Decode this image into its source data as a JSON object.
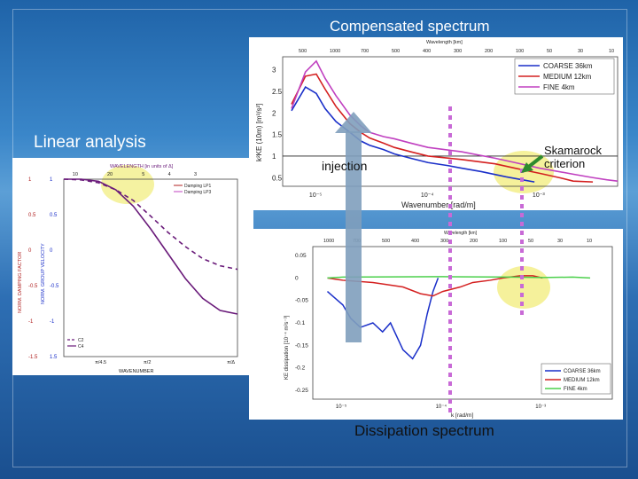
{
  "slide": {
    "title_top": "Compensated spectrum",
    "title_left": "Linear analysis",
    "injection": "injection",
    "skamarock": "Skamarock criterion",
    "title_bottom": "Dissipation spectrum"
  },
  "chart_data": [
    {
      "type": "line",
      "title": "",
      "xlabel": "WAVENUMBER",
      "top_xlabel": "WAVELENGTH [in units of Δ]",
      "ylabel_left": "NORM. DAMPING FACTOR",
      "ylabel_right": "NORM. GROUP VELOCITY",
      "top_ticks": [
        "10",
        "20",
        "5",
        "4",
        "3"
      ],
      "bottom_ticks": [
        "π/4.5",
        "π/2",
        "π/Δ"
      ],
      "left_ticks": [
        "1",
        "0.5",
        "0",
        "-0.5",
        "-1",
        "-1.5"
      ],
      "right_ticks": [
        "1",
        "0.5",
        "0",
        "-0.5",
        "-1",
        "1.5"
      ],
      "legend_top": [
        "Damping LP1",
        "Damping LP3"
      ],
      "legend_bottom": [
        "C2",
        "C4"
      ],
      "series": [
        {
          "name": "C2",
          "x": [
            0,
            0.1,
            0.2,
            0.3,
            0.4,
            0.5,
            0.6,
            0.7,
            0.8,
            0.9,
            1.0
          ],
          "values": [
            1.0,
            0.99,
            0.95,
            0.85,
            0.7,
            0.48,
            0.25,
            0.05,
            -0.12,
            -0.22,
            -0.27
          ]
        },
        {
          "name": "C4",
          "x": [
            0,
            0.1,
            0.2,
            0.3,
            0.4,
            0.5,
            0.6,
            0.7,
            0.8,
            0.9,
            1.0
          ],
          "values": [
            1.0,
            1.0,
            0.97,
            0.85,
            0.62,
            0.3,
            -0.05,
            -0.4,
            -0.68,
            -0.85,
            -0.9
          ]
        }
      ]
    },
    {
      "type": "line",
      "title": "",
      "xlabel": "Wavenumber [rad/m]",
      "ylabel": "k²KE (10m) [m³/s²]",
      "top_xlabel": "Wavelength [km]",
      "top_ticks": [
        "500",
        "1000",
        "700",
        "500",
        "400",
        "300",
        "200",
        "100",
        "50",
        "30",
        "10"
      ],
      "x_ticks": [
        "10⁻⁵",
        "10⁻⁴",
        "10⁻³"
      ],
      "y_ticks": [
        "3",
        "2.5",
        "2",
        "1.5",
        "1",
        "0.5"
      ],
      "ylim": [
        0.3,
        3.3
      ],
      "x_log": true,
      "xlim": [
        5e-06,
        0.005
      ],
      "series": [
        {
          "name": "COARSE 36km",
          "color": "#1a2fc9",
          "x": [
            6e-06,
            8e-06,
            1e-05,
            1.2e-05,
            1.5e-05,
            2e-05,
            2.5e-05,
            3e-05,
            4e-05,
            5e-05,
            7e-05,
            0.0001,
            0.00015,
            0.0002,
            0.0003,
            0.0005,
            0.0007,
            0.0009
          ],
          "values": [
            2.05,
            2.6,
            2.45,
            2.1,
            1.8,
            1.55,
            1.35,
            1.25,
            1.15,
            1.05,
            0.95,
            0.85,
            0.78,
            0.72,
            0.64,
            0.52,
            0.45,
            0.4
          ]
        },
        {
          "name": "MEDIUM 12km",
          "color": "#d42020",
          "x": [
            6e-06,
            8e-06,
            1e-05,
            1.2e-05,
            1.5e-05,
            2e-05,
            2.5e-05,
            3e-05,
            4e-05,
            5e-05,
            7e-05,
            0.0001,
            0.0002,
            0.0004,
            0.0006,
            0.001,
            0.0015,
            0.002,
            0.003
          ],
          "values": [
            2.2,
            2.85,
            2.9,
            2.55,
            2.15,
            1.75,
            1.55,
            1.42,
            1.3,
            1.2,
            1.1,
            1.0,
            0.92,
            0.82,
            0.72,
            0.6,
            0.5,
            0.42,
            0.4
          ]
        },
        {
          "name": "FINE 4km",
          "color": "#c040c0",
          "x": [
            6e-06,
            8e-06,
            1e-05,
            1.2e-05,
            1.5e-05,
            2e-05,
            2.5e-05,
            3e-05,
            4e-05,
            5e-05,
            7e-05,
            0.0001,
            0.0002,
            0.0004,
            0.0006,
            0.001,
            0.002,
            0.003,
            0.004,
            0.005
          ],
          "values": [
            2.1,
            2.95,
            3.2,
            2.8,
            2.4,
            1.95,
            1.7,
            1.55,
            1.45,
            1.4,
            1.3,
            1.2,
            1.1,
            0.95,
            0.85,
            0.72,
            0.58,
            0.5,
            0.45,
            0.42
          ]
        }
      ],
      "reference_line": 1
    },
    {
      "type": "line",
      "title": "",
      "xlabel": "k [rad/m]",
      "ylabel": "KE dissipation [10⁻⁴ m²s⁻³]",
      "top_xlabel": "Wavelength [km]",
      "top_ticks": [
        "1000",
        "700",
        "500",
        "400",
        "300",
        "200",
        "100",
        "50",
        "30",
        "10"
      ],
      "x_ticks": [
        "10⁻⁵",
        "10⁻⁴",
        "10⁻³"
      ],
      "y_ticks": [
        "0.05",
        "0",
        "-0.05",
        "-0.1",
        "-0.15",
        "-0.2",
        "-0.25"
      ],
      "ylim": [
        -0.27,
        0.07
      ],
      "x_log": true,
      "xlim": [
        5e-06,
        0.005
      ],
      "series": [
        {
          "name": "COARSE 36km",
          "color": "#1a2fc9",
          "x": [
            7e-06,
            1e-05,
            1.2e-05,
            1.5e-05,
            2e-05,
            2.5e-05,
            3e-05,
            4e-05,
            5e-05,
            6e-05,
            7e-05,
            8e-05,
            9e-05
          ],
          "values": [
            -0.03,
            -0.06,
            -0.09,
            -0.11,
            -0.1,
            -0.12,
            -0.1,
            -0.16,
            -0.18,
            -0.15,
            -0.08,
            -0.03,
            0.0
          ]
        },
        {
          "name": "MEDIUM 12km",
          "color": "#d42020",
          "x": [
            7e-06,
            1e-05,
            2e-05,
            4e-05,
            6e-05,
            8e-05,
            0.0001,
            0.00015,
            0.0002,
            0.0003,
            0.0004,
            0.0006,
            0.0008,
            0.001
          ],
          "values": [
            0.0,
            -0.005,
            -0.01,
            -0.02,
            -0.035,
            -0.04,
            -0.03,
            -0.02,
            -0.01,
            -0.005,
            0.0,
            0.005,
            0.005,
            0.0
          ]
        },
        {
          "name": "FINE 4km",
          "color": "#4cd04c",
          "x": [
            7e-06,
            1e-05,
            0.0001,
            0.0005,
            0.001,
            0.002,
            0.003
          ],
          "values": [
            0.0,
            0.002,
            0.003,
            0.002,
            0.001,
            0.002,
            0.0
          ]
        }
      ]
    }
  ]
}
